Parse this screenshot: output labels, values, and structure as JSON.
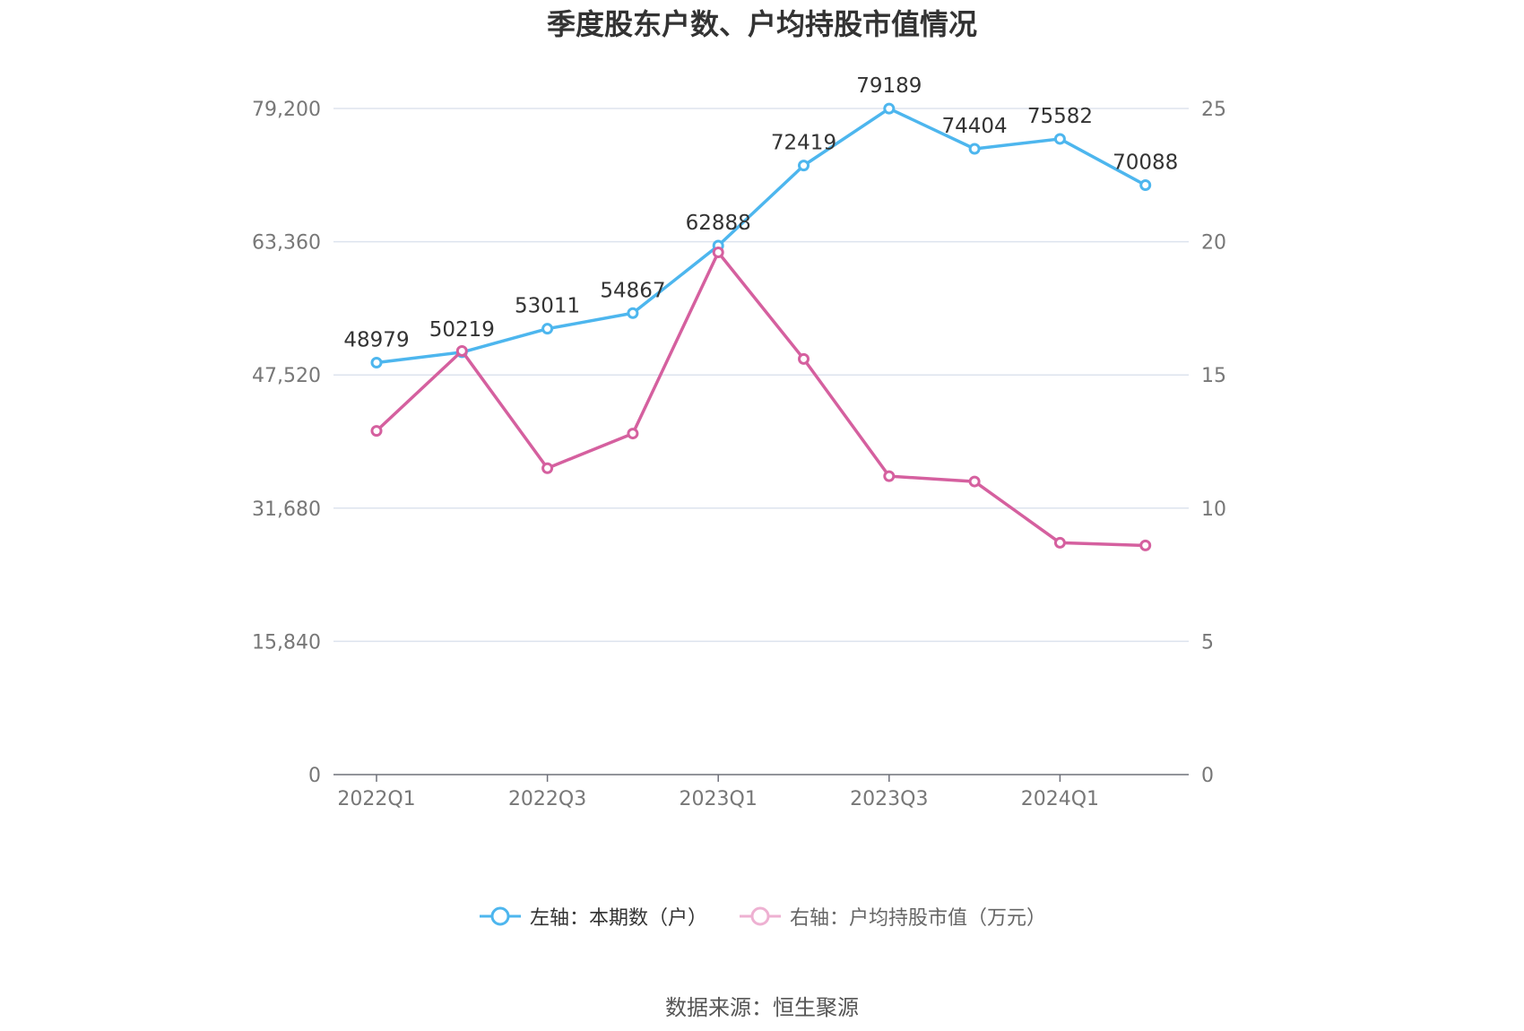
{
  "title": "季度股东户数、户均持股市值情况",
  "source": "数据来源：恒生聚源",
  "colors": {
    "left_series": "#4db6ee",
    "right_series": "#d5609f",
    "grid": "#dde3ee",
    "axis_text": "#777777",
    "label_text": "#333333"
  },
  "legend": [
    {
      "label": "左轴：本期数（户）",
      "icon": "line-circle-icon"
    },
    {
      "label": "右轴：户均持股市值（万元）",
      "icon": "line-circle-icon"
    }
  ],
  "chart_data": {
    "type": "line",
    "title": "季度股东户数、户均持股市值情况",
    "x": [
      "2022Q1",
      "2022Q2",
      "2022Q3",
      "2022Q4",
      "2023Q1",
      "2023Q2",
      "2023Q3",
      "2023Q4",
      "2024Q1",
      "2024Q2"
    ],
    "x_tick_labels": [
      "2022Q1",
      "2022Q3",
      "2023Q1",
      "2023Q3",
      "2024Q1"
    ],
    "left_axis": {
      "ylim": [
        0,
        79200
      ],
      "ticks": [
        "0",
        "15,840",
        "31,680",
        "47,520",
        "63,360",
        "79,200"
      ]
    },
    "right_axis": {
      "ylim": [
        0,
        25
      ],
      "ticks": [
        "0",
        "5",
        "10",
        "15",
        "20",
        "25"
      ]
    },
    "grid": true,
    "legend_position": "bottom",
    "series": [
      {
        "name": "左轴：本期数（户）",
        "axis": "left",
        "values": [
          48979,
          50219,
          53011,
          54867,
          62888,
          72419,
          79189,
          74404,
          75582,
          70088
        ],
        "data_labels": [
          "48979",
          "50219",
          "53011",
          "54867",
          "62888",
          "72419",
          "79189",
          "74404",
          "75582",
          "70088"
        ]
      },
      {
        "name": "右轴：户均持股市值（万元）",
        "axis": "right",
        "values": [
          12.9,
          15.9,
          11.5,
          12.8,
          19.6,
          15.6,
          11.2,
          11.0,
          8.7,
          8.6
        ]
      }
    ]
  }
}
